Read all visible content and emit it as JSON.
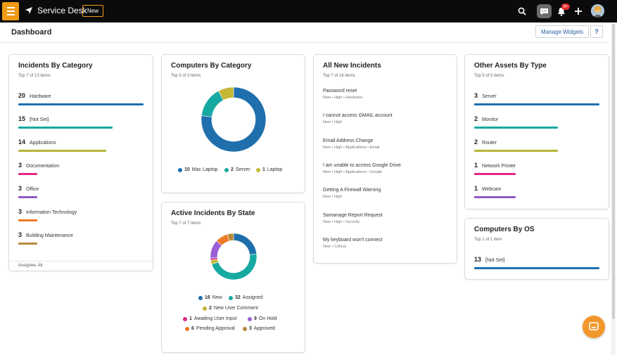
{
  "app": {
    "brand": "Service Desk",
    "new_label": "New",
    "notification_count": "9+"
  },
  "header": {
    "title": "Dashboard",
    "manage_label": "Manage Widgets",
    "help_label": "?"
  },
  "incidents_by_category": {
    "title": "Incidents By Category",
    "subtitle": "Top 7 of 13 items",
    "footer": "Assignee: All",
    "items": [
      {
        "count": "20",
        "label": "Hardware",
        "color": "#1f6fad",
        "fill": 1.0
      },
      {
        "count": "15",
        "label": "[Not Set]",
        "color": "#16a9a2",
        "fill": 0.75
      },
      {
        "count": "14",
        "label": "Applications",
        "color": "#b8b53a",
        "fill": 0.7
      },
      {
        "count": "3",
        "label": "Documentation",
        "color": "#e0288a",
        "fill": 0.15
      },
      {
        "count": "3",
        "label": "Office",
        "color": "#8f5ac7",
        "fill": 0.15
      },
      {
        "count": "3",
        "label": "Information Technology",
        "color": "#ef7a27",
        "fill": 0.15
      },
      {
        "count": "3",
        "label": "Building Maintenance",
        "color": "#b98a3a",
        "fill": 0.15
      }
    ]
  },
  "computers_by_category": {
    "title": "Computers By Category",
    "subtitle": "Top 3 of 3 items",
    "legend": [
      {
        "count": "10",
        "label": "Mac Laptop",
        "color": "#1f6fad"
      },
      {
        "count": "2",
        "label": "Server",
        "color": "#16a9a2"
      },
      {
        "count": "1",
        "label": "Laptop",
        "color": "#c5b734"
      }
    ]
  },
  "active_incidents": {
    "title": "Active Incidents By State",
    "subtitle": "Top 7 of 7 items",
    "legend": [
      {
        "count": "16",
        "label": "New",
        "color": "#1f6fad"
      },
      {
        "count": "32",
        "label": "Assigned",
        "color": "#16a9a2"
      },
      {
        "count": "2",
        "label": "New User Comment",
        "color": "#c5b734"
      },
      {
        "count": "1",
        "label": "Awaiting User Input",
        "color": "#e0288a"
      },
      {
        "count": "9",
        "label": "On Hold",
        "color": "#9a5fd6"
      },
      {
        "count": "6",
        "label": "Pending Approval",
        "color": "#ef7a27"
      },
      {
        "count": "3",
        "label": "Approved",
        "color": "#b98a3a"
      }
    ]
  },
  "all_new_incidents": {
    "title": "All New Incidents",
    "subtitle": "Top 7 of 16 items",
    "items": [
      {
        "title": "Password reset",
        "meta": "New • High • Hardware"
      },
      {
        "title": "I cannot access GMAIL account",
        "meta": "New • High"
      },
      {
        "title": "Email Address Change",
        "meta": "New • High • Applications • Email"
      },
      {
        "title": "I am unable to access Google Drive",
        "meta": "New • High • Applications • Google"
      },
      {
        "title": "Getting A Firewall Warning",
        "meta": "New • High"
      },
      {
        "title": "Samanage Report Request",
        "meta": "New • High • Security"
      },
      {
        "title": "My keyboard won't connect",
        "meta": "New • Critical"
      }
    ]
  },
  "other_assets": {
    "title": "Other Assets By Type",
    "subtitle": "Top 5 of 5 items",
    "items": [
      {
        "count": "3",
        "label": "Server",
        "color": "#1f6fad",
        "fill": 1.0
      },
      {
        "count": "2",
        "label": "Monitor",
        "color": "#16a9a2",
        "fill": 0.67
      },
      {
        "count": "2",
        "label": "Router",
        "color": "#b8b53a",
        "fill": 0.67
      },
      {
        "count": "1",
        "label": "Network Printer",
        "color": "#e0288a",
        "fill": 0.33
      },
      {
        "count": "1",
        "label": "Webcam",
        "color": "#8f5ac7",
        "fill": 0.33
      }
    ]
  },
  "computers_by_os": {
    "title": "Computers By OS",
    "subtitle": "Top 1 of 1 item",
    "items": [
      {
        "count": "13",
        "label": "[Not Set]",
        "color": "#1f6fad",
        "fill": 1.0
      }
    ]
  }
}
